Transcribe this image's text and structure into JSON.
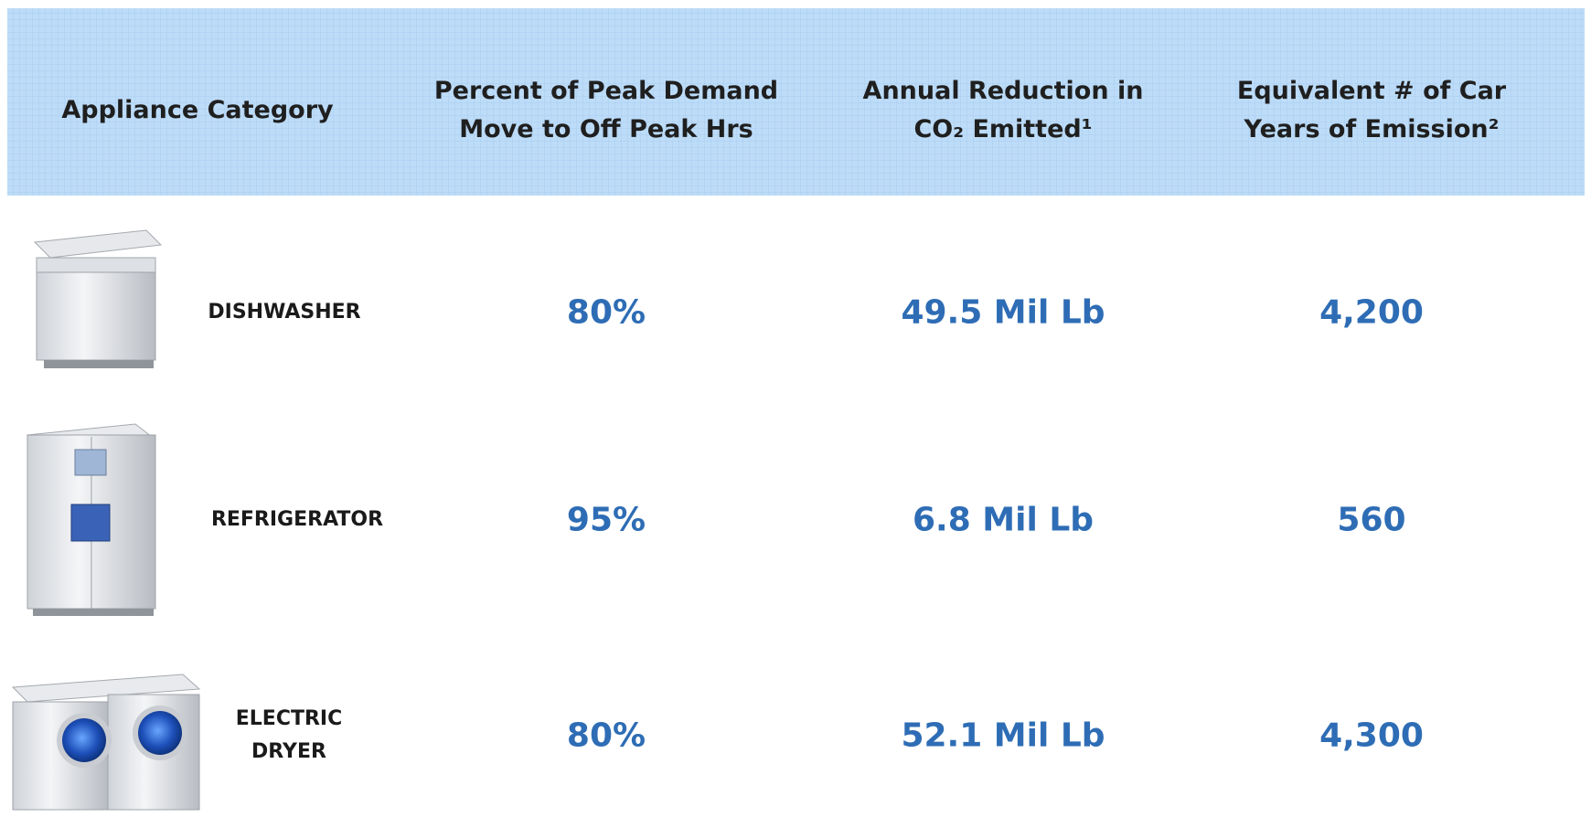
{
  "table": {
    "header": [
      {
        "lines": [
          "Appliance Category"
        ]
      },
      {
        "lines": [
          "Percent of Peak Demand",
          "Move to Off Peak Hrs"
        ]
      },
      {
        "lines": [
          "Annual Reduction in",
          "CO₂ Emitted¹"
        ]
      },
      {
        "lines": [
          "Equivalent # of Car",
          "Years of Emission²"
        ]
      }
    ],
    "rows": [
      {
        "name": [
          "DISHWASHER"
        ],
        "cells": [
          "80%",
          "49.5 Mil Lb",
          "4,200"
        ]
      },
      {
        "name": [
          "REFRIGERATOR"
        ],
        "cells": [
          "95%",
          "6.8 Mil Lb",
          "560"
        ]
      },
      {
        "name": [
          "ELECTRIC",
          "DRYER"
        ],
        "cells": [
          "80%",
          "52.1 Mil Lb",
          "4,300"
        ]
      }
    ]
  }
}
